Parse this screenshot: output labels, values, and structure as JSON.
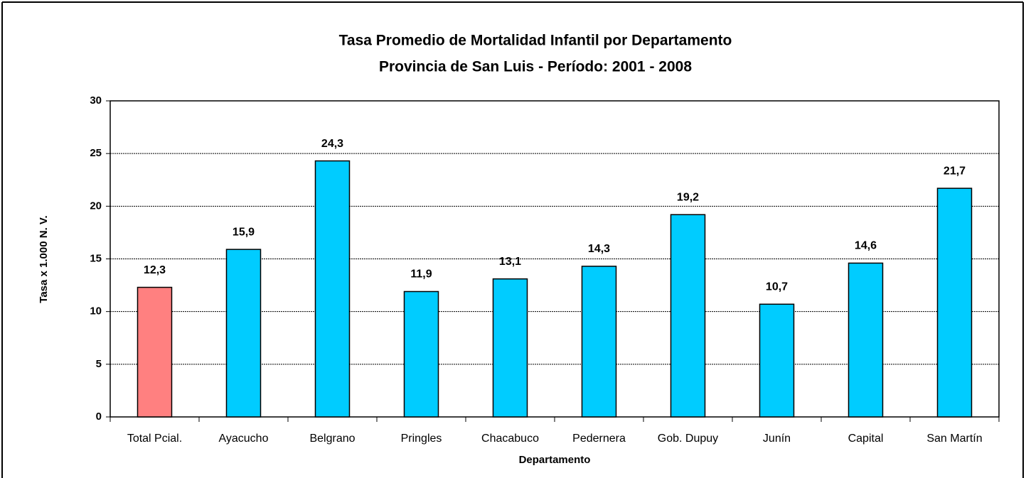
{
  "chart_data": {
    "type": "bar",
    "title": "Tasa Promedio de Mortalidad Infantil por Departamento",
    "subtitle": "Provincia de San Luis - Período: 2001 - 2008",
    "x_label": "Departamento",
    "y_label": "Tasa x 1.000 N. V.",
    "categories": [
      "Total Pcial.",
      "Ayacucho",
      "Belgrano",
      "Pringles",
      "Chacabuco",
      "Pedernera",
      "Gob. Dupuy",
      "Junín",
      "Capital",
      "San Martín"
    ],
    "values": [
      12.3,
      15.9,
      24.3,
      11.9,
      13.1,
      14.3,
      19.2,
      10.7,
      14.6,
      21.7
    ],
    "value_labels": [
      "12,3",
      "15,9",
      "24,3",
      "11,9",
      "13,1",
      "14,3",
      "19,2",
      "10,7",
      "14,6",
      "21,7"
    ],
    "colors": [
      "#ff8080",
      "#00ccff",
      "#00ccff",
      "#00ccff",
      "#00ccff",
      "#00ccff",
      "#00ccff",
      "#00ccff",
      "#00ccff",
      "#00ccff"
    ],
    "ylim": [
      0,
      30
    ],
    "yticks": [
      0,
      5,
      10,
      15,
      20,
      25,
      30
    ],
    "grid": true
  }
}
